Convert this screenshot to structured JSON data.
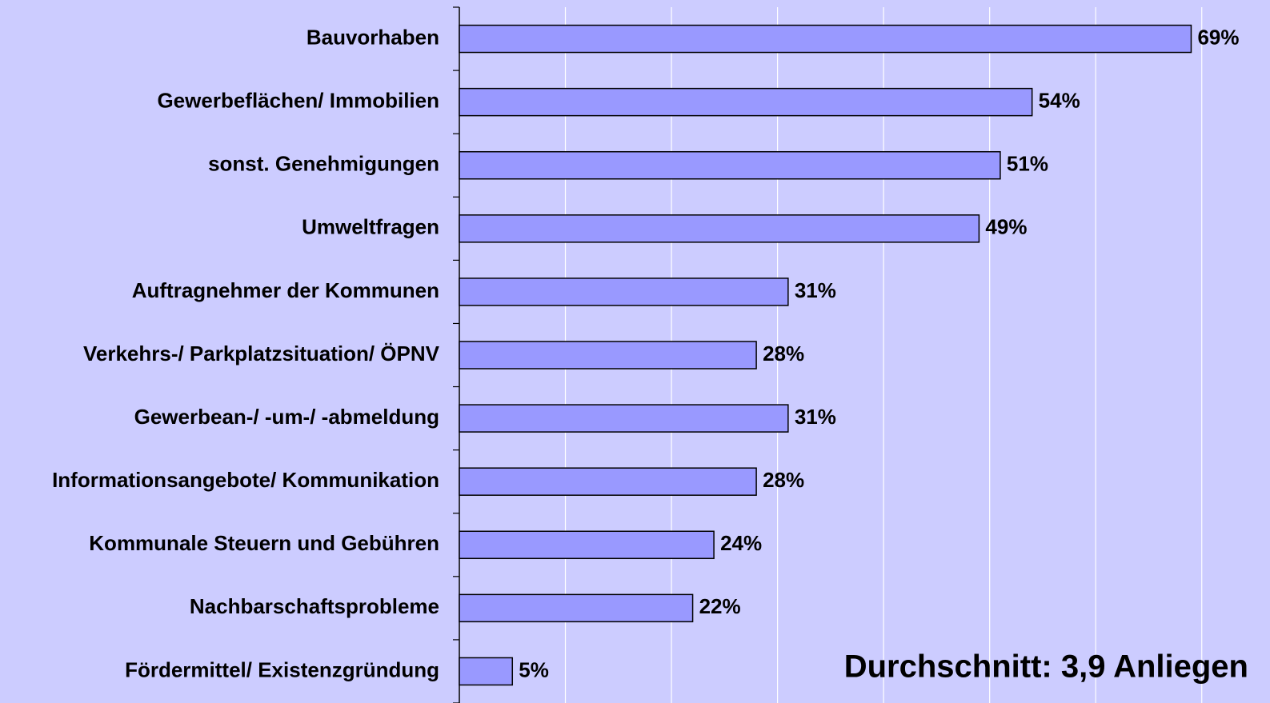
{
  "chart_data": {
    "type": "bar",
    "orientation": "horizontal",
    "categories": [
      "Bauvorhaben",
      "Gewerbeflächen/ Immobilien",
      "sonst. Genehmigungen",
      "Umweltfragen",
      "Auftragnehmer der Kommunen",
      "Verkehrs-/ Parkplatzsituation/ ÖPNV",
      "Gewerbean-/ -um-/ -abmeldung",
      "Informationsangebote/ Kommunikation",
      "Kommunale Steuern und Gebühren",
      "Nachbarschaftsprobleme",
      "Fördermittel/ Existenzgründung"
    ],
    "values": [
      69,
      54,
      51,
      49,
      31,
      28,
      31,
      28,
      24,
      22,
      5
    ],
    "value_labels": [
      "69%",
      "54%",
      "51%",
      "49%",
      "31%",
      "28%",
      "31%",
      "28%",
      "24%",
      "22%",
      "5%"
    ],
    "color": "#9999ff",
    "xlim": [
      0,
      75
    ],
    "xticks": [
      0,
      10,
      20,
      30,
      40,
      50,
      60,
      70
    ],
    "grid": true,
    "annotation": "Durchschnitt: 3,9 Anliegen"
  }
}
